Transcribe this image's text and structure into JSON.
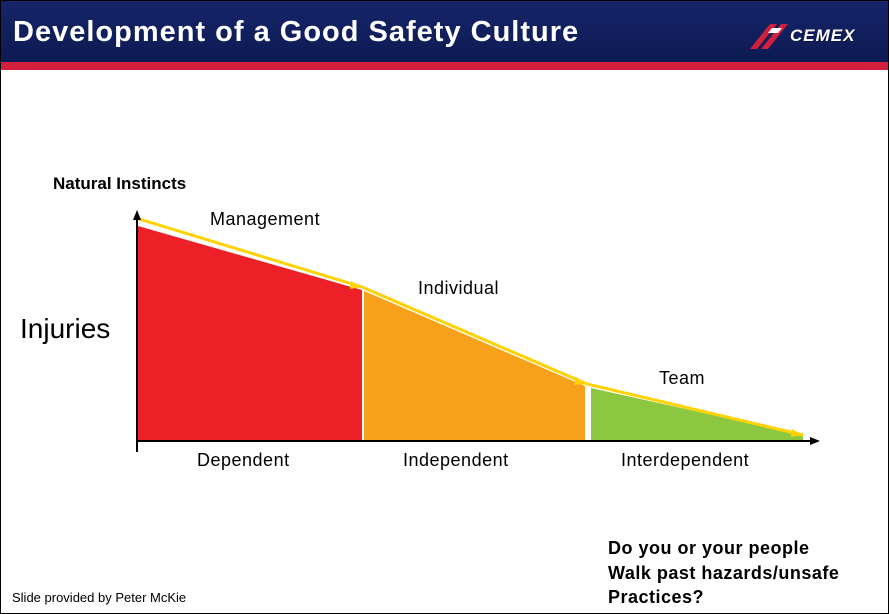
{
  "slide": {
    "title": "Development of a Good Safety Culture",
    "logo_text": "CEMEX",
    "credit": "Slide provided by Peter McKie"
  },
  "diagram": {
    "top_label": "Natural Instincts",
    "y_axis_label": "Injuries",
    "stages": [
      {
        "name": "Management",
        "phase": "Dependent",
        "color": "#ed2027"
      },
      {
        "name": "Individual",
        "phase": "Independent",
        "color": "#f7a11a"
      },
      {
        "name": "Team",
        "phase": "Interdependent",
        "color": "#8dc63f"
      }
    ],
    "trend_line_color": "#ffd200"
  },
  "question": {
    "line1": "Do you or your people",
    "line2": "Walk past hazards/unsafe",
    "line3": "Practices?"
  }
}
